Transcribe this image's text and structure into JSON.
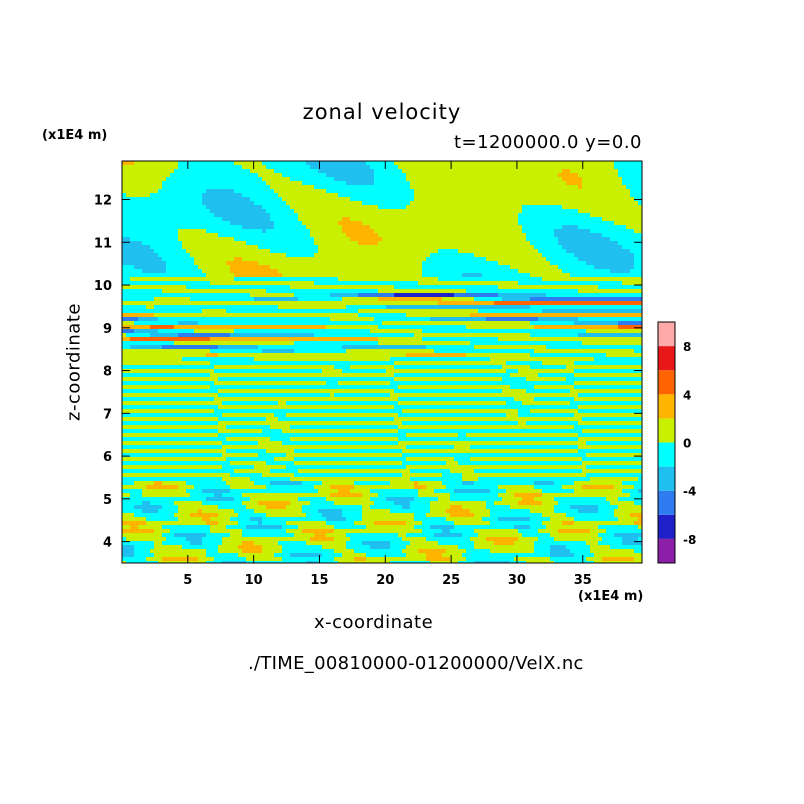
{
  "chart_data": {
    "type": "heatmap",
    "title": "zonal velocity",
    "subtitle": "t=1200000.0 y=0.0",
    "xlabel": "x-coordinate",
    "ylabel": "z-coordinate",
    "x_unit": "(x1E4 m)",
    "y_unit": "(x1E4 m)",
    "xlim": [
      0,
      39.5
    ],
    "ylim": [
      3.5,
      12.9
    ],
    "x_ticks": [
      5,
      10,
      15,
      20,
      25,
      30,
      35
    ],
    "y_ticks": [
      4,
      5,
      6,
      7,
      8,
      9,
      10,
      11,
      12
    ],
    "colorbar": {
      "levels": [
        -10,
        -8,
        -6,
        -4,
        -2,
        0,
        2,
        4,
        6,
        8,
        10
      ],
      "tick_labels": [
        "8",
        "4",
        "0",
        "-4",
        "-8"
      ],
      "tick_values": [
        8,
        4,
        0,
        -4,
        -8
      ],
      "colors": [
        "#8b1fa8",
        "#2020c8",
        "#2f7cf0",
        "#1fbff0",
        "#00ffff",
        "#c8f000",
        "#ffb400",
        "#ff6400",
        "#e81818",
        "#ffaaaa"
      ]
    },
    "bands": [
      {
        "z": 9.72,
        "amp": -7,
        "width": 0.06
      },
      {
        "z": 9.6,
        "amp": 7,
        "width": 0.05
      },
      {
        "z": 9.45,
        "amp": -5,
        "width": 0.05
      },
      {
        "z": 9.3,
        "amp": 5,
        "width": 0.05
      },
      {
        "z": 9.18,
        "amp": -8,
        "width": 0.05
      },
      {
        "z": 9.05,
        "amp": 6,
        "width": 0.05
      },
      {
        "z": 8.88,
        "amp": -6,
        "width": 0.05
      },
      {
        "z": 8.75,
        "amp": 5,
        "width": 0.05
      },
      {
        "z": 8.55,
        "amp": -4,
        "width": 0.05
      },
      {
        "z": 8.35,
        "amp": 3,
        "width": 0.04
      }
    ]
  },
  "footer": {
    "filename": "./TIME_00810000-01200000/VelX.nc"
  }
}
